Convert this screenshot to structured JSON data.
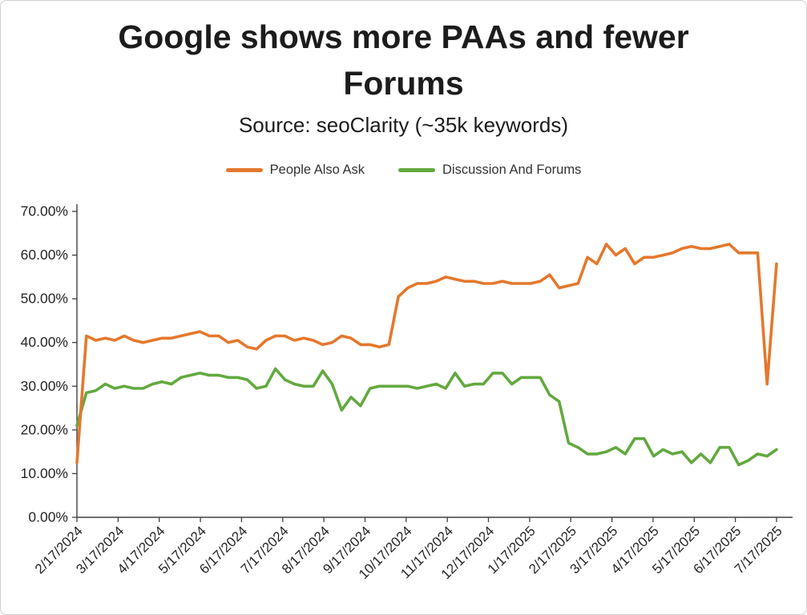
{
  "title_line1": "Google shows more PAAs and fewer",
  "title_line2": "Forums",
  "subtitle": "Source: seoClarity (~35k keywords)",
  "legend": [
    {
      "label": "People Also Ask",
      "color": "#E4782D"
    },
    {
      "label": "Discussion And Forums",
      "color": "#63A93F"
    }
  ],
  "chart_data": {
    "type": "line",
    "title": "Google shows more PAAs and fewer Forums",
    "subtitle": "Source: seoClarity (~35k keywords)",
    "xlabel": "",
    "ylabel": "",
    "ylim": [
      0,
      70
    ],
    "grid": false,
    "legend_position": "top",
    "y_tick_labels": [
      "70.00%",
      "60.00%",
      "50.00%",
      "40.00%",
      "30.00%",
      "20.00%",
      "10.00%",
      "0.00%"
    ],
    "x_tick_labels": [
      "2/17/2024",
      "3/17/2024",
      "4/17/2024",
      "5/17/2024",
      "6/17/2024",
      "7/17/2024",
      "8/17/2024",
      "9/17/2024",
      "10/17/2024",
      "11/17/2024",
      "12/17/2024",
      "1/17/2025",
      "2/17/2025",
      "3/17/2025",
      "4/17/2025",
      "5/17/2025",
      "6/17/2025",
      "7/17/2025"
    ],
    "x": [
      "2/17/2024",
      "2/24/2024",
      "3/2/2024",
      "3/9/2024",
      "3/16/2024",
      "3/23/2024",
      "3/30/2024",
      "4/6/2024",
      "4/13/2024",
      "4/20/2024",
      "4/27/2024",
      "5/4/2024",
      "5/11/2024",
      "5/18/2024",
      "5/25/2024",
      "6/1/2024",
      "6/8/2024",
      "6/15/2024",
      "6/22/2024",
      "6/29/2024",
      "7/6/2024",
      "7/13/2024",
      "7/20/2024",
      "7/27/2024",
      "8/3/2024",
      "8/10/2024",
      "8/17/2024",
      "8/24/2024",
      "8/31/2024",
      "9/7/2024",
      "9/14/2024",
      "9/21/2024",
      "9/28/2024",
      "10/5/2024",
      "10/12/2024",
      "10/19/2024",
      "10/26/2024",
      "11/2/2024",
      "11/9/2024",
      "11/16/2024",
      "11/23/2024",
      "11/30/2024",
      "12/7/2024",
      "12/14/2024",
      "12/21/2024",
      "12/28/2024",
      "1/4/2025",
      "1/11/2025",
      "1/18/2025",
      "1/25/2025",
      "2/1/2025",
      "2/8/2025",
      "2/15/2025",
      "2/22/2025",
      "3/1/2025",
      "3/8/2025",
      "3/15/2025",
      "3/22/2025",
      "3/29/2025",
      "4/5/2025",
      "4/12/2025",
      "4/19/2025",
      "4/26/2025",
      "5/3/2025",
      "5/10/2025",
      "5/17/2025",
      "5/24/2025",
      "5/31/2025",
      "6/7/2025",
      "6/14/2025",
      "6/21/2025",
      "6/28/2025",
      "7/5/2025",
      "7/12/2025",
      "7/19/2025"
    ],
    "series": [
      {
        "name": "People Also Ask",
        "color": "#E4782D",
        "values": [
          12.5,
          41.5,
          40.5,
          41,
          40.5,
          41.5,
          40.5,
          40,
          40.5,
          41,
          41,
          41.5,
          42,
          42.5,
          41.5,
          41.5,
          40,
          40.5,
          39,
          38.5,
          40.5,
          41.5,
          41.5,
          40.5,
          41,
          40.5,
          39.5,
          40,
          41.5,
          41,
          39.5,
          39.5,
          39,
          39.5,
          50.5,
          52.5,
          53.5,
          53.5,
          54,
          55,
          54.5,
          54,
          54,
          53.5,
          53.5,
          54,
          53.5,
          53.5,
          53.5,
          54,
          55.5,
          52.5,
          53,
          53.5,
          59.5,
          58,
          62.5,
          60,
          61.5,
          58,
          59.5,
          59.5,
          60,
          60.5,
          61.5,
          62,
          61.5,
          61.5,
          62,
          62.5,
          60.5,
          60.5,
          60.5,
          30.5,
          58
        ]
      },
      {
        "name": "Discussion And Forums",
        "color": "#63A93F",
        "values": [
          21,
          28.5,
          29,
          30.5,
          29.5,
          30,
          29.5,
          29.5,
          30.5,
          31,
          30.5,
          32,
          32.5,
          33,
          32.5,
          32.5,
          32,
          32,
          31.5,
          29.5,
          30,
          34,
          31.5,
          30.5,
          30,
          30,
          33.5,
          30.5,
          24.5,
          27.5,
          25.5,
          29.5,
          30,
          30,
          30,
          30,
          29.5,
          30,
          30.5,
          29.5,
          33,
          30,
          30.5,
          30.5,
          33,
          33,
          30.5,
          32,
          32,
          32,
          28,
          26.5,
          17,
          16,
          14.5,
          14.5,
          15,
          16,
          14.5,
          18,
          18,
          14,
          15.5,
          14.5,
          15,
          12.5,
          14.5,
          12.5,
          16,
          16,
          12,
          13,
          14.5,
          14,
          15.5
        ]
      }
    ]
  }
}
